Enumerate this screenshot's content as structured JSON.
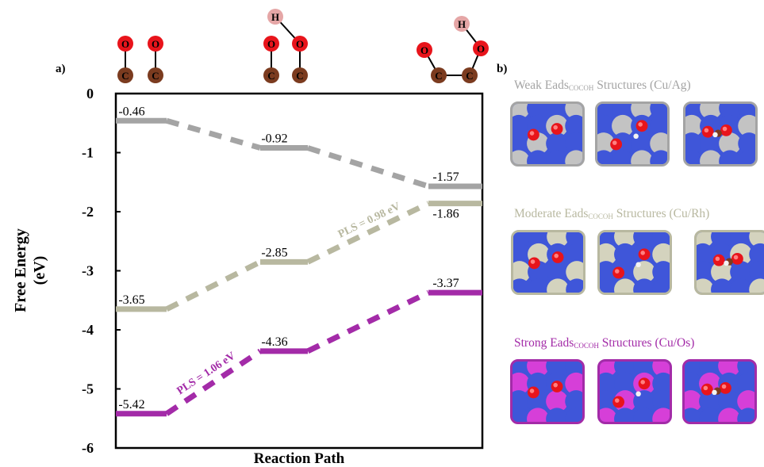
{
  "panel_a_label": "a)",
  "panel_b_label": "b)",
  "chart_data": {
    "type": "line",
    "xlabel": "Reaction Path",
    "ylabel_line1": "Free Energy",
    "ylabel_line2": "(eV)",
    "ylim": [
      -6,
      0
    ],
    "yticks": [
      "0",
      "-1",
      "-2",
      "-3",
      "-4",
      "-5",
      "-6"
    ],
    "grid": false,
    "categories": [
      "*CO + *CO",
      "*COCOH",
      "*COCOH (ring)"
    ],
    "series": [
      {
        "color": "#a4a4a4",
        "values": [
          -0.46,
          -0.92,
          -1.57
        ],
        "labels": [
          "-0.46",
          "-0.92",
          "-1.57"
        ]
      },
      {
        "color": "#b8b8a0",
        "values": [
          -3.65,
          -2.85,
          -1.86
        ],
        "labels": [
          "-3.65",
          "-2.85",
          "-1.86"
        ],
        "annotation": "PLS = 0.98 eV"
      },
      {
        "color": "#a32ba8",
        "values": [
          -5.42,
          -4.36,
          -3.37
        ],
        "labels": [
          "-5.42",
          "-4.36",
          "-3.37"
        ],
        "annotation": "PLS = 1.06 eV"
      }
    ]
  },
  "molecules": {
    "o_label": "O",
    "c_label": "C",
    "h_label": "H"
  },
  "panel_b": {
    "rows": [
      {
        "title_pre": "Weak Eads",
        "title_sub": "COCOH",
        "title_post": " Structures (Cu/Ag)",
        "title_color": "#a4a4a4",
        "border": "#a4a4a4",
        "secondary": "#c3c3c3"
      },
      {
        "title_pre": "Moderate Eads",
        "title_sub": "COCOH",
        "title_post": " Structures (Cu/Rh)",
        "title_color": "#b8b8a0",
        "border": "#b8b8a0",
        "secondary": "#d4d3be"
      },
      {
        "title_pre": "Strong Eads",
        "title_sub": "COCOH",
        "title_post": " Structures (Cu/Os)",
        "title_color": "#a32ba8",
        "border": "#a32ba8",
        "secondary": "#d63fd8"
      }
    ]
  }
}
